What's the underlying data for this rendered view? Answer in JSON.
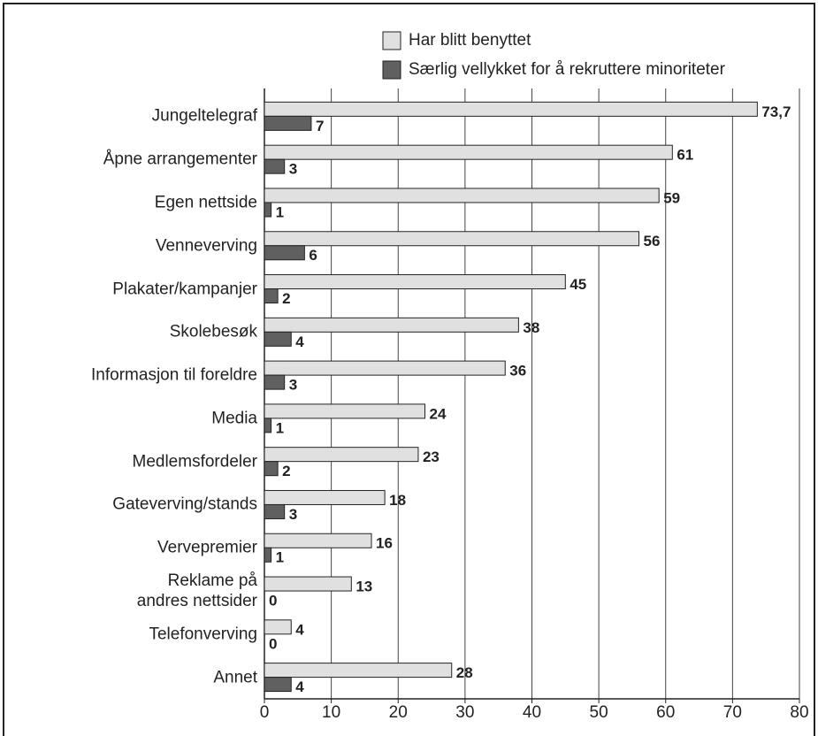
{
  "chart_data": {
    "type": "barh",
    "categories": [
      "Jungeltelegraf",
      "Åpne arrangementer",
      "Egen nettside",
      "Venneverving",
      "Plakater/kampanjer",
      "Skolebesøk",
      "Informasjon til foreldre",
      "Media",
      "Medlemsfordeler",
      "Gateverving/stands",
      "Vervepremier",
      "Reklame på\nandres nettsider",
      "Telefonverving",
      "Annet"
    ],
    "series": [
      {
        "name": "Har blitt benyttet",
        "color": "#e0e0e0",
        "values": [
          73.7,
          61,
          59,
          56,
          45,
          38,
          36,
          24,
          23,
          18,
          16,
          13,
          4,
          28
        ],
        "value_labels": [
          "73,7",
          "61",
          "59",
          "56",
          "45",
          "38",
          "36",
          "24",
          "23",
          "18",
          "16",
          "13",
          "4",
          "28"
        ]
      },
      {
        "name": "Særlig vellykket for å rekruttere minoriteter",
        "color": "#606060",
        "values": [
          7,
          3,
          1,
          6,
          2,
          4,
          3,
          1,
          2,
          3,
          1,
          0,
          0,
          4
        ]
      }
    ],
    "xlim": [
      0,
      80
    ],
    "xticks": [
      0,
      10,
      20,
      30,
      40,
      50,
      60,
      70,
      80
    ],
    "grid": true,
    "legend": "top"
  }
}
